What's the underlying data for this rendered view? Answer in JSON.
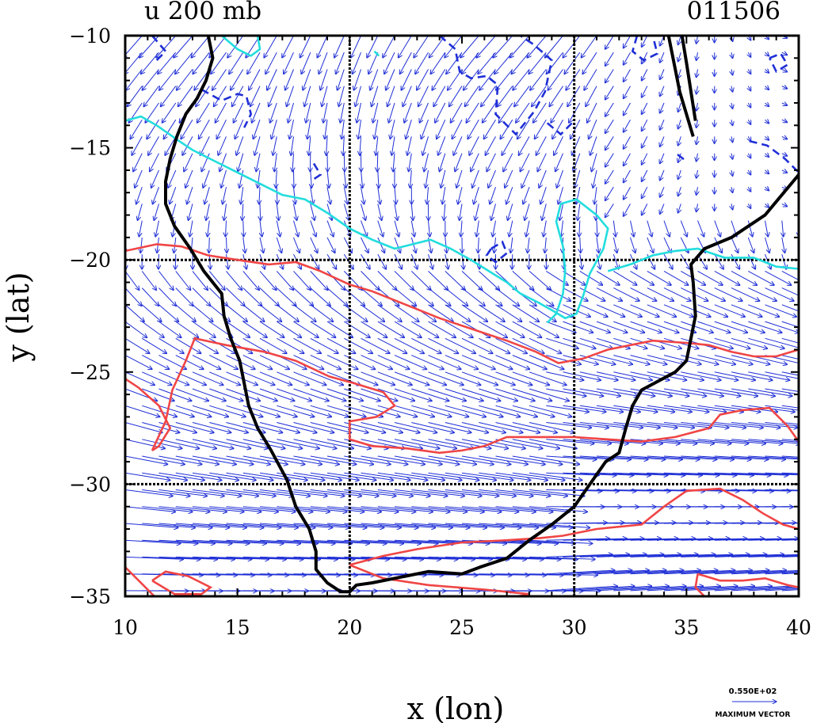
{
  "chart_data": {
    "type": "vector-contour",
    "title_left": "u 200 mb",
    "title_right": "011506",
    "xlabel": "x (lon)",
    "ylabel": "y (lat)",
    "xlim": [
      10,
      40
    ],
    "ylim": [
      -35,
      -10
    ],
    "x_ticks": [
      10,
      15,
      20,
      25,
      30,
      35,
      40
    ],
    "y_ticks": [
      -10,
      -15,
      -20,
      -25,
      -30,
      -35
    ],
    "x_tick_labels": [
      "10",
      "15",
      "20",
      "25",
      "30",
      "35",
      "40"
    ],
    "y_tick_labels": [
      "−10",
      "−15",
      "−20",
      "−25",
      "−30",
      "−35"
    ],
    "gridlines_x": [
      20,
      30
    ],
    "gridlines_y": [
      -20,
      -30
    ],
    "vector_legend": {
      "value": "0.550E+02",
      "label": "MAXIMUM VECTOR"
    },
    "colors": {
      "coastline": "#000000",
      "positive_contour": "#f04545",
      "zero_contour": "#22dddd",
      "negative_contour": "#1f2fd6",
      "vectors": "#1f2fd6"
    },
    "coastline": [
      [
        [
          13.7,
          -10
        ],
        [
          13.9,
          -11
        ],
        [
          13.6,
          -12
        ],
        [
          13.2,
          -12.8
        ],
        [
          12.7,
          -13.5
        ],
        [
          12.3,
          -14.5
        ],
        [
          12,
          -15.5
        ],
        [
          11.8,
          -16.5
        ],
        [
          11.8,
          -17.5
        ],
        [
          12.2,
          -18.5
        ],
        [
          12.9,
          -19.5
        ],
        [
          13.5,
          -20.5
        ],
        [
          14.3,
          -21.5
        ],
        [
          14.4,
          -22.5
        ],
        [
          14.7,
          -23.5
        ],
        [
          15.1,
          -24.5
        ],
        [
          15.3,
          -25.5
        ],
        [
          15.5,
          -26.5
        ],
        [
          15.9,
          -27.5
        ],
        [
          16.5,
          -28.5
        ],
        [
          17.2,
          -29.8
        ],
        [
          17.6,
          -31
        ],
        [
          18.2,
          -32
        ],
        [
          18.5,
          -33
        ],
        [
          18.5,
          -33.8
        ],
        [
          19,
          -34.4
        ],
        [
          19.6,
          -34.8
        ],
        [
          20,
          -34.8
        ],
        [
          20.3,
          -34.5
        ],
        [
          21,
          -34.4
        ],
        [
          22.5,
          -34.1
        ],
        [
          23.5,
          -33.9
        ],
        [
          25,
          -34
        ],
        [
          25.8,
          -33.7
        ],
        [
          27,
          -33.3
        ],
        [
          28,
          -32.5
        ],
        [
          29,
          -31.8
        ],
        [
          30,
          -31
        ],
        [
          30.7,
          -30
        ],
        [
          31.4,
          -29
        ],
        [
          32,
          -28.6
        ],
        [
          32.3,
          -27.5
        ],
        [
          32.6,
          -26.5
        ],
        [
          33,
          -25.8
        ],
        [
          34.5,
          -25
        ],
        [
          35,
          -24.5
        ],
        [
          35.4,
          -22.5
        ],
        [
          35.3,
          -21
        ],
        [
          35.2,
          -20.2
        ],
        [
          35.8,
          -19.5
        ],
        [
          37,
          -19
        ],
        [
          38.5,
          -18
        ],
        [
          40,
          -16.2
        ]
      ],
      [
        [
          34.2,
          -10
        ],
        [
          34.5,
          -11.5
        ],
        [
          34.7,
          -12.5
        ],
        [
          35,
          -13.5
        ],
        [
          35.3,
          -14.5
        ]
      ],
      [
        [
          34.8,
          -10
        ],
        [
          35,
          -11.2
        ],
        [
          35.2,
          -12.5
        ],
        [
          35.4,
          -13.8
        ]
      ]
    ],
    "zero_contours": [
      [
        [
          10,
          -13.8
        ],
        [
          10.7,
          -13.6
        ],
        [
          11.4,
          -14
        ],
        [
          12.4,
          -14.7
        ],
        [
          13,
          -15.1
        ],
        [
          14,
          -15.6
        ],
        [
          15,
          -16.1
        ],
        [
          16,
          -16.6
        ],
        [
          17,
          -17.1
        ],
        [
          18,
          -17.3
        ],
        [
          19,
          -17.9
        ],
        [
          20,
          -18.6
        ],
        [
          21,
          -19.1
        ],
        [
          22,
          -19.5
        ],
        [
          22.8,
          -19.3
        ],
        [
          23.6,
          -19.1
        ],
        [
          24.5,
          -19.5
        ],
        [
          25.4,
          -20
        ],
        [
          26.2,
          -20.5
        ],
        [
          27,
          -21
        ],
        [
          27.6,
          -21.5
        ],
        [
          28.4,
          -21.9
        ],
        [
          29.1,
          -22.3
        ],
        [
          29.6,
          -22.6
        ],
        [
          30.1,
          -22.4
        ],
        [
          30.4,
          -21.6
        ],
        [
          30.7,
          -20.6
        ],
        [
          31.3,
          -19.5
        ],
        [
          31.5,
          -18.6
        ],
        [
          31,
          -18
        ],
        [
          30.1,
          -17.3
        ],
        [
          29.4,
          -17.5
        ],
        [
          29.2,
          -18.3
        ],
        [
          29.5,
          -19.4
        ],
        [
          29.6,
          -20.5
        ],
        [
          29.5,
          -21.5
        ],
        [
          29.2,
          -22.4
        ],
        [
          28.8,
          -22.8
        ]
      ],
      [
        [
          31.5,
          -20.5
        ],
        [
          32.5,
          -20.2
        ],
        [
          33.5,
          -19.8
        ],
        [
          34.5,
          -19.6
        ],
        [
          35.5,
          -19.5
        ],
        [
          36.7,
          -19.9
        ],
        [
          38,
          -19.9
        ],
        [
          39,
          -20.3
        ],
        [
          40,
          -20.4
        ]
      ],
      [
        [
          14.3,
          -10
        ],
        [
          15,
          -10.6
        ],
        [
          15.6,
          -10.9
        ],
        [
          16,
          -10.6
        ],
        [
          15.9,
          -10
        ]
      ],
      [
        [
          21.1,
          -10.7
        ],
        [
          21.3,
          -10.9
        ]
      ]
    ],
    "positive_contours": [
      [
        [
          10,
          -19.6
        ],
        [
          11.4,
          -19.3
        ],
        [
          12.5,
          -19.4
        ],
        [
          13.7,
          -19.8
        ],
        [
          15,
          -20
        ],
        [
          16.4,
          -20.2
        ],
        [
          17.6,
          -20.1
        ],
        [
          18.7,
          -20.5
        ],
        [
          20,
          -21.1
        ],
        [
          21,
          -21.4
        ],
        [
          22.5,
          -22
        ],
        [
          24,
          -22.6
        ],
        [
          25.5,
          -23.1
        ],
        [
          27,
          -23.6
        ],
        [
          28.3,
          -24.1
        ],
        [
          29.3,
          -24.6
        ],
        [
          30.4,
          -24.4
        ],
        [
          31.5,
          -24
        ],
        [
          32.5,
          -23.8
        ],
        [
          33.5,
          -23.6
        ],
        [
          35,
          -23.7
        ],
        [
          36,
          -23.8
        ],
        [
          37,
          -24.1
        ],
        [
          38,
          -24.3
        ],
        [
          39,
          -24.3
        ],
        [
          40,
          -24
        ]
      ],
      [
        [
          11.2,
          -28.5
        ],
        [
          11.8,
          -27.2
        ],
        [
          12.1,
          -25.8
        ],
        [
          12.7,
          -24.5
        ],
        [
          13.1,
          -23.5
        ],
        [
          14.5,
          -23.8
        ],
        [
          16.2,
          -24.1
        ],
        [
          17.6,
          -24.5
        ],
        [
          19.1,
          -25.2
        ],
        [
          20.2,
          -25.5
        ],
        [
          21.5,
          -25.9
        ],
        [
          22,
          -26.5
        ],
        [
          21.2,
          -27
        ],
        [
          20,
          -27.2
        ],
        [
          20,
          -28
        ],
        [
          21,
          -28.3
        ],
        [
          22.5,
          -28.4
        ],
        [
          24,
          -28.6
        ],
        [
          25,
          -28.5
        ],
        [
          26,
          -28.3
        ],
        [
          27,
          -27.9
        ],
        [
          28.5,
          -27.9
        ],
        [
          30,
          -27.9
        ],
        [
          31.5,
          -28
        ],
        [
          33,
          -28.1
        ],
        [
          34.5,
          -27.9
        ],
        [
          36,
          -27.5
        ],
        [
          36.5,
          -26.9
        ],
        [
          37.5,
          -26.7
        ],
        [
          38.7,
          -26.6
        ],
        [
          39.5,
          -27.4
        ],
        [
          40,
          -28.1
        ]
      ],
      [
        [
          10,
          -25.3
        ],
        [
          10.6,
          -25.7
        ],
        [
          11.5,
          -26.5
        ],
        [
          12,
          -27.5
        ],
        [
          11.5,
          -28.3
        ],
        [
          11.2,
          -28.5
        ]
      ],
      [
        [
          20,
          -33.6
        ],
        [
          21.5,
          -33.2
        ],
        [
          23,
          -32.9
        ],
        [
          25,
          -32.6
        ],
        [
          27,
          -32.5
        ],
        [
          28.5,
          -32.4
        ],
        [
          29.5,
          -32.3
        ],
        [
          31,
          -32
        ],
        [
          33,
          -31.8
        ],
        [
          34,
          -31
        ],
        [
          35,
          -30.3
        ],
        [
          36.5,
          -30.2
        ],
        [
          37.5,
          -30.7
        ],
        [
          38.4,
          -31.3
        ],
        [
          39.3,
          -31.8
        ],
        [
          40,
          -32
        ]
      ],
      [
        [
          20,
          -33.6
        ],
        [
          21.5,
          -34.2
        ],
        [
          23.5,
          -34.5
        ],
        [
          26,
          -34.7
        ],
        [
          28,
          -34.9
        ],
        [
          27.5,
          -35
        ]
      ],
      [
        [
          11.2,
          -34.3
        ],
        [
          11.8,
          -33.9
        ],
        [
          12.8,
          -34.1
        ],
        [
          13.8,
          -34.6
        ],
        [
          13.4,
          -34.9
        ],
        [
          12.2,
          -34.9
        ],
        [
          11.2,
          -34.3
        ]
      ],
      [
        [
          10,
          -33.7
        ],
        [
          10.8,
          -34.5
        ],
        [
          11.3,
          -35
        ]
      ],
      [
        [
          35.5,
          -34
        ],
        [
          36.5,
          -34.3
        ],
        [
          37.5,
          -34.3
        ],
        [
          38.5,
          -34.2
        ],
        [
          39.5,
          -34.5
        ],
        [
          40,
          -34.6
        ]
      ],
      [
        [
          35.5,
          -34
        ],
        [
          35.4,
          -34.6
        ],
        [
          35.8,
          -35
        ]
      ]
    ],
    "negative_contours": [
      [
        [
          11.2,
          -10
        ],
        [
          11.8,
          -10.7
        ],
        [
          11.3,
          -11.2
        ]
      ],
      [
        [
          13.4,
          -12.4
        ],
        [
          14.3,
          -12.9
        ],
        [
          15,
          -12.6
        ],
        [
          15.4,
          -12.7
        ],
        [
          15.6,
          -13.5
        ],
        [
          15.3,
          -14.1
        ]
      ],
      [
        [
          18.4,
          -15.7
        ],
        [
          18.7,
          -16.2
        ],
        [
          18.4,
          -16.4
        ]
      ],
      [
        [
          24,
          -10
        ],
        [
          24.7,
          -10.6
        ],
        [
          24.9,
          -11.6
        ],
        [
          25.4,
          -11.9
        ],
        [
          26.1,
          -11.8
        ],
        [
          26.6,
          -12.2
        ],
        [
          26.5,
          -13.5
        ],
        [
          27.4,
          -14.4
        ],
        [
          28.2,
          -13.4
        ],
        [
          28.7,
          -12.5
        ],
        [
          29,
          -11.1
        ],
        [
          28.2,
          -10.4
        ],
        [
          27.6,
          -10
        ]
      ],
      [
        [
          28.8,
          -13.9
        ],
        [
          29.4,
          -14.4
        ],
        [
          29.9,
          -13.9
        ]
      ],
      [
        [
          26.3,
          -19.5
        ],
        [
          26.8,
          -19.2
        ],
        [
          27,
          -19.7
        ],
        [
          26.5,
          -20.1
        ],
        [
          26.1,
          -19.8
        ],
        [
          26.3,
          -19.5
        ]
      ],
      [
        [
          32.8,
          -10
        ],
        [
          32.6,
          -10.7
        ],
        [
          33.1,
          -11.1
        ],
        [
          33.7,
          -10.8
        ],
        [
          33.5,
          -10
        ]
      ],
      [
        [
          38.7,
          -11
        ],
        [
          39.2,
          -10.8
        ],
        [
          39.5,
          -11.3
        ],
        [
          39,
          -11.6
        ],
        [
          38.7,
          -11
        ]
      ],
      [
        [
          37.8,
          -14.7
        ],
        [
          38.6,
          -14.9
        ],
        [
          39.4,
          -15.5
        ],
        [
          40,
          -16.1
        ]
      ],
      [
        [
          34.6,
          -15.3
        ],
        [
          35,
          -15.6
        ]
      ]
    ]
  }
}
